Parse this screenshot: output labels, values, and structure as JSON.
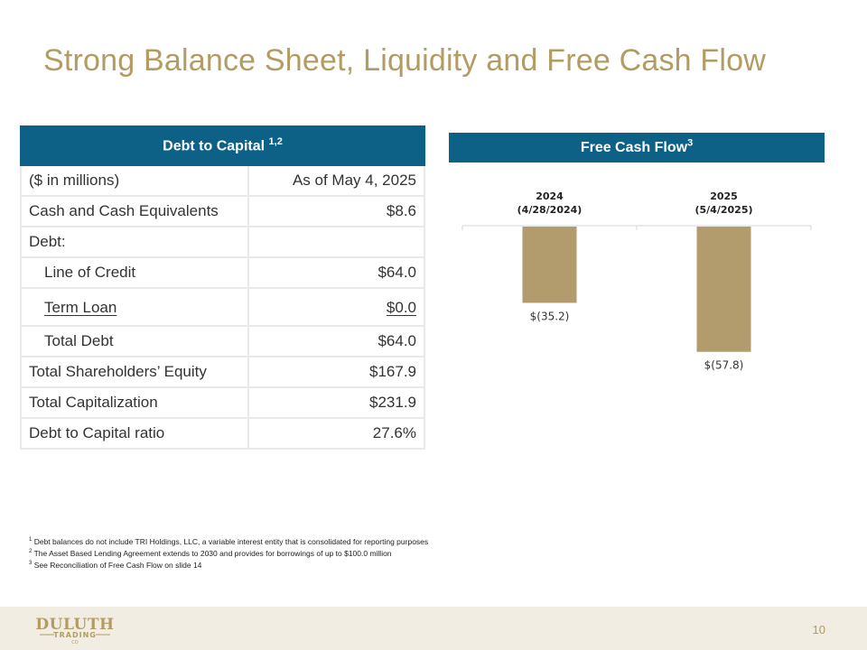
{
  "title": "Strong Balance Sheet, Liquidity and Free Cash Flow",
  "debt_table": {
    "header": "Debt to Capital",
    "header_sup": "1,2",
    "rows": [
      {
        "label": "($ in millions)",
        "value": "As of May 4, 2025"
      },
      {
        "label": "Cash and Cash Equivalents",
        "value": "$8.6"
      },
      {
        "label": "Debt:",
        "value": ""
      },
      {
        "label": "Line of Credit",
        "value": "$64.0"
      },
      {
        "label": "Term Loan",
        "value": "$0.0"
      },
      {
        "label": "Total Debt",
        "value": "$64.0"
      },
      {
        "label": "Total Shareholders’ Equity",
        "value": "$167.9"
      },
      {
        "label": "Total Capitalization",
        "value": "$231.9"
      },
      {
        "label": "Debt to Capital ratio",
        "value": "27.6%"
      }
    ]
  },
  "fcf": {
    "header": "Free Cash Flow",
    "header_sup": "3"
  },
  "chart_data": {
    "type": "bar",
    "title": "Free Cash Flow",
    "categories": [
      "2024 (4/28/2024)",
      "2025 (5/4/2025)"
    ],
    "category_years": [
      "2024",
      "2025"
    ],
    "category_dates": [
      "(4/28/2024)",
      "(5/4/2025)"
    ],
    "values": [
      -35.2,
      -57.8
    ],
    "data_labels": [
      "$(35.2)",
      "$(57.8)"
    ],
    "ylim": [
      -60,
      0
    ],
    "bar_color": "#b29c6d",
    "grid": false
  },
  "footnotes": [
    {
      "num": "1",
      "text": "Debt balances do not include TRI Holdings, LLC, a variable interest entity that is consolidated for reporting purposes"
    },
    {
      "num": "2",
      "text": "The Asset Based Lending Agreement extends to 2030 and provides for borrowings of up to $100.0 million"
    },
    {
      "num": "3",
      "text": "See Reconciliation of Free Cash Flow on slide 14"
    }
  ],
  "footer": {
    "logo_text_top": "DULUTH",
    "logo_text_mid": "TRADING",
    "logo_text_bottom": "CO",
    "page_number": "10"
  },
  "colors": {
    "gold": "#b29c63",
    "blue": "#0d6187",
    "footer_bg": "#f2ede3"
  }
}
